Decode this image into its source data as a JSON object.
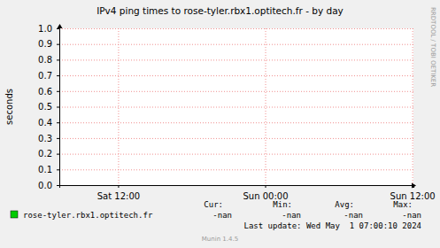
{
  "chart_data": {
    "type": "line",
    "title": "IPv4 ping times to rose-tyler.rbx1.optitech.fr - by day",
    "y_label": "seconds",
    "x": [],
    "series": [
      {
        "name": "rose-tyler.rbx1.optitech.fr",
        "color": "#00cc00",
        "values": [],
        "stats": [
          "-nan",
          "-nan",
          "-nan",
          "-nan"
        ]
      }
    ],
    "stat_labels": [
      "Cur:",
      "Min:",
      "Avg:",
      "Max:"
    ],
    "xlim": [
      7.2,
      36.1
    ],
    "xticks": [
      {
        "value": 12,
        "label": "Sat 12:00"
      },
      {
        "value": 24,
        "label": "Sun 00:00"
      },
      {
        "value": 36,
        "label": "Sun 12:00"
      }
    ],
    "ylim": [
      0,
      1
    ],
    "yticks": [
      {
        "value": 0,
        "label": "0.0"
      },
      0.1,
      0.2,
      0.3,
      0.4,
      0.5,
      0.6,
      0.7,
      0.8,
      0.9,
      {
        "value": 1,
        "label": "1.0"
      }
    ],
    "grid": true,
    "last_update": "Last update: Wed May  1 07:00:10 2024",
    "footer": "Munin 1.4.5",
    "watermark": "RRDTOOL / TOBI OETIKER"
  }
}
